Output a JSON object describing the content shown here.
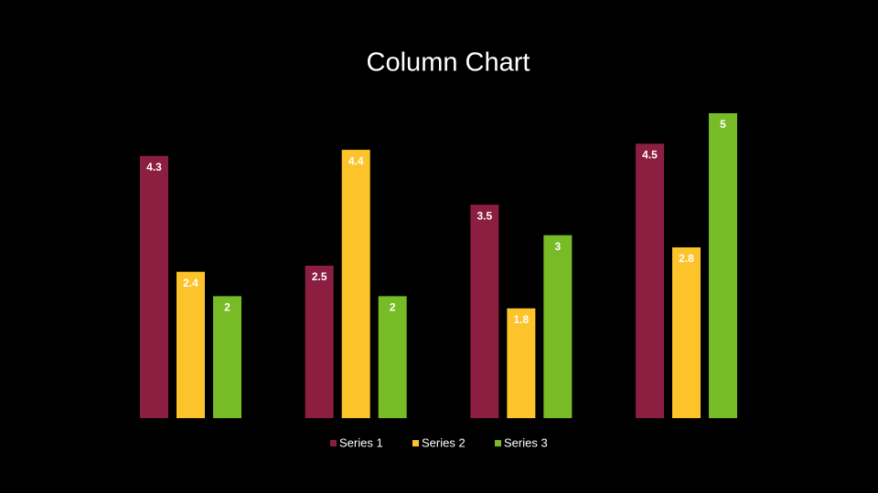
{
  "chart_data": {
    "type": "bar",
    "title": "Column Chart",
    "categories": [
      null,
      null,
      null,
      null
    ],
    "series": [
      {
        "name": "Series 1",
        "color": "#8b1e41",
        "values": [
          4.3,
          2.5,
          3.5,
          4.5
        ]
      },
      {
        "name": "Series 2",
        "color": "#fdc32a",
        "values": [
          2.4,
          4.4,
          1.8,
          2.8
        ]
      },
      {
        "name": "Series 3",
        "color": "#77bb26",
        "values": [
          2,
          2,
          3,
          5
        ]
      }
    ]
  }
}
